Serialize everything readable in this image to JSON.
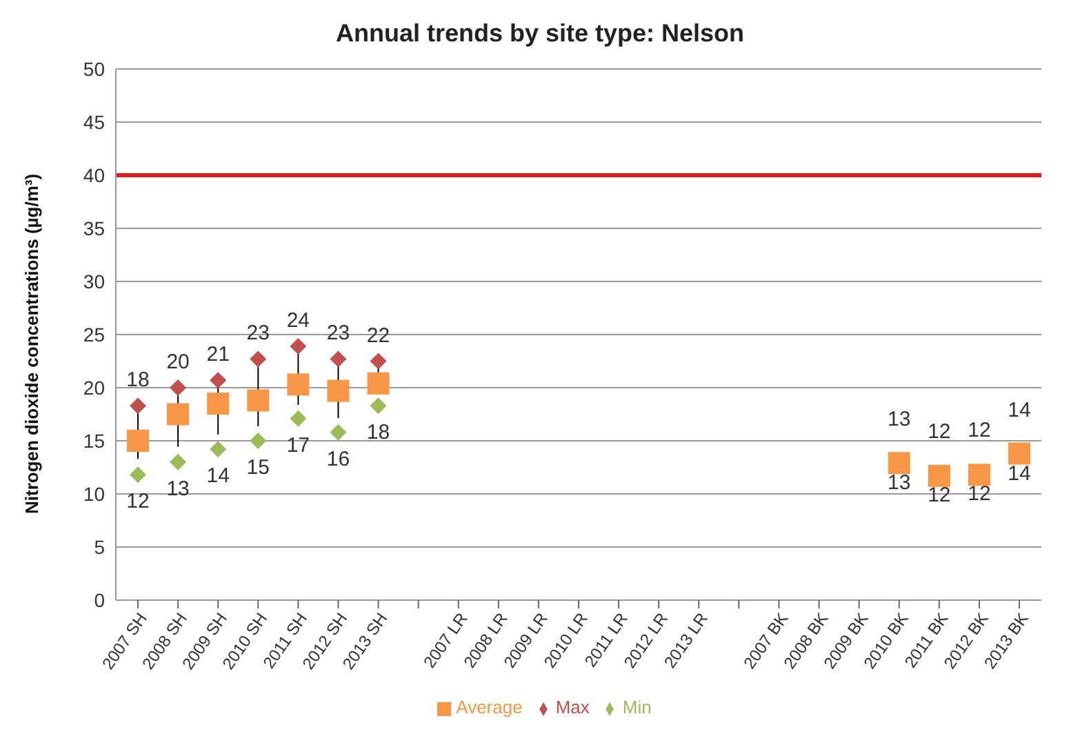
{
  "chart_data": {
    "type": "scatter",
    "title": "Annual trends by site type: Nelson",
    "ylabel": "Nitrogen dioxide concentrations (µg/m³)",
    "categories": [
      "2007 SH",
      "2008 SH",
      "2009 SH",
      "2010 SH",
      "2011 SH",
      "2012 SH",
      "2013 SH",
      null,
      "2007 LR",
      "2008 LR",
      "2009 LR",
      "2010 LR",
      "2011 LR",
      "2012 LR",
      "2013 LR",
      null,
      "2007 BK",
      "2008 BK",
      "2009 BK",
      "2010 BK",
      "2011 BK",
      "2012 BK",
      "2013 BK"
    ],
    "series": [
      {
        "name": "Max",
        "color": "#c0504d",
        "marker": "diamond",
        "values": [
          18.3,
          20,
          20.7,
          22.7,
          23.9,
          22.7,
          22.5,
          null,
          null,
          null,
          null,
          null,
          null,
          null,
          null,
          null,
          null,
          null,
          null,
          null,
          null,
          null,
          null
        ],
        "value_labels": [
          "18",
          "20",
          "21",
          "23",
          "24",
          "23",
          "22",
          null,
          null,
          null,
          null,
          null,
          null,
          null,
          null,
          null,
          null,
          null,
          null,
          null,
          null,
          null,
          null
        ]
      },
      {
        "name": "Min",
        "color": "#9bbb59",
        "marker": "diamond",
        "values": [
          11.8,
          13,
          14.2,
          15,
          17.1,
          15.8,
          18.3,
          null,
          null,
          null,
          null,
          null,
          null,
          null,
          null,
          null,
          null,
          null,
          null,
          null,
          null,
          null,
          null
        ],
        "value_labels": [
          "12",
          "13",
          "14",
          "15",
          "17",
          "16",
          "18",
          null,
          null,
          null,
          null,
          null,
          null,
          null,
          null,
          null,
          null,
          null,
          null,
          null,
          null,
          null,
          null
        ]
      },
      {
        "name": "Average",
        "color": "#f79646",
        "marker": "square",
        "values": [
          15,
          17.5,
          18.5,
          18.8,
          20.3,
          19.7,
          20.4,
          null,
          null,
          null,
          null,
          null,
          null,
          null,
          null,
          null,
          null,
          null,
          null,
          12.9,
          11.7,
          11.8,
          13.8
        ]
      }
    ],
    "annotations": [
      {
        "text": "13",
        "x": "2010 BK",
        "y": 12.9
      },
      {
        "text": "13",
        "x": "2010 BK",
        "y": 12.9
      },
      {
        "text": "12",
        "x": "2011 BK",
        "y": 11.7
      },
      {
        "text": "12",
        "x": "2011 BK",
        "y": 11.7
      },
      {
        "text": "12",
        "x": "2012 BK",
        "y": 11.8
      },
      {
        "text": "12",
        "x": "2012 BK",
        "y": 11.8
      },
      {
        "text": "14",
        "x": "2013 BK",
        "y": 13.8
      },
      {
        "text": "14",
        "x": "2013 BK",
        "y": 13.8
      }
    ],
    "ref_lines": [
      {
        "axis": "y",
        "value": 40,
        "color": "#e41a1c"
      }
    ],
    "ylim": [
      0,
      50
    ],
    "yticks": [
      0,
      5,
      10,
      15,
      20,
      25,
      30,
      35,
      40,
      45,
      50
    ],
    "grid": "y",
    "legend": "bottom"
  }
}
